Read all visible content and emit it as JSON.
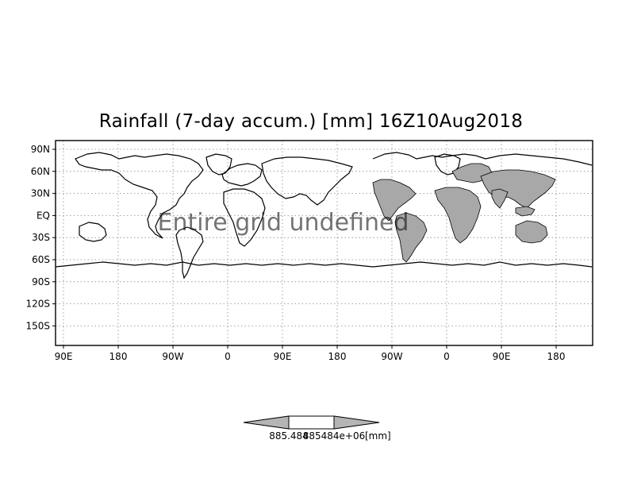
{
  "title": "Rainfall (7-day accum.) [mm] 16Z10Aug2018",
  "overlay_text": "Entire grid undefined",
  "y_ticks": [
    "90N",
    "60N",
    "30N",
    "EQ",
    "30S",
    "60S",
    "90S",
    "120S",
    "150S"
  ],
  "x_ticks": [
    "90E",
    "180",
    "90W",
    "0",
    "90E",
    "180",
    "90W",
    "0",
    "90E",
    "180"
  ],
  "colorbar": {
    "left_label": "885.484",
    "right_label": "885484e+06",
    "units": "[mm]"
  },
  "colors": {
    "land_shaded": "#a8a8a8",
    "background": "#ffffff",
    "gridlines": "#8a8a8a"
  }
}
